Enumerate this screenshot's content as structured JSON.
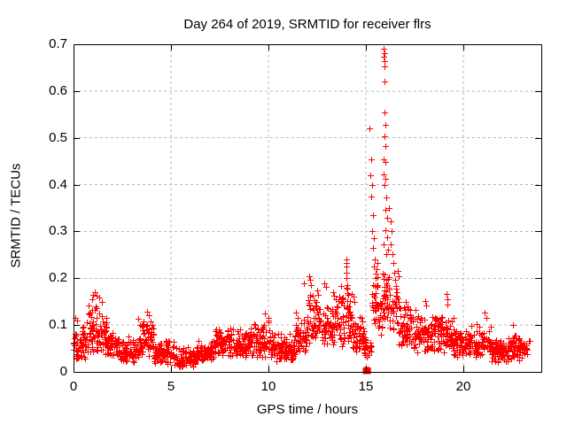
{
  "chart_data": {
    "type": "scatter",
    "title": "Day 264 of 2019, SRMTID for receiver flrs",
    "xlabel": "GPS time / hours",
    "ylabel": "SRMTID / TECUs",
    "xlim": [
      0,
      24
    ],
    "ylim": [
      0,
      0.7
    ],
    "x_ticks": [
      "0",
      "5",
      "10",
      "15",
      "20"
    ],
    "x_tick_values": [
      0,
      5,
      10,
      15,
      20
    ],
    "y_ticks": [
      "0",
      "0.1",
      "0.2",
      "0.3",
      "0.4",
      "0.5",
      "0.6",
      "0.7"
    ],
    "y_tick_values": [
      0,
      0.1,
      0.2,
      0.3,
      0.4,
      0.5,
      0.6,
      0.7
    ],
    "grid": "dashed",
    "legend": "none",
    "marker": "plus",
    "marker_color": "#ff0000",
    "grid_color": "#b8b8b8",
    "frame_color": "#000000",
    "seed": 264,
    "band_segments": [
      [
        0.0,
        0.7,
        0.025,
        0.105,
        56
      ],
      [
        0.7,
        1.7,
        0.035,
        0.16,
        85
      ],
      [
        1.7,
        2.2,
        0.03,
        0.09,
        40
      ],
      [
        2.2,
        3.3,
        0.02,
        0.08,
        88
      ],
      [
        3.3,
        4.1,
        0.03,
        0.12,
        64
      ],
      [
        4.1,
        5.2,
        0.015,
        0.075,
        88
      ],
      [
        5.2,
        6.4,
        0.01,
        0.055,
        96
      ],
      [
        6.4,
        7.2,
        0.02,
        0.07,
        64
      ],
      [
        7.2,
        9.6,
        0.03,
        0.105,
        190
      ],
      [
        9.6,
        10.1,
        0.03,
        0.125,
        40
      ],
      [
        10.1,
        11.4,
        0.02,
        0.085,
        104
      ],
      [
        11.4,
        12.0,
        0.04,
        0.13,
        48
      ],
      [
        12.0,
        12.6,
        0.05,
        0.19,
        50
      ],
      [
        12.6,
        13.6,
        0.05,
        0.16,
        80
      ],
      [
        13.6,
        14.3,
        0.05,
        0.21,
        56
      ],
      [
        14.3,
        14.9,
        0.04,
        0.13,
        48
      ],
      [
        14.9,
        15.3,
        0.03,
        0.1,
        24
      ],
      [
        15.3,
        15.6,
        0.1,
        0.27,
        26
      ],
      [
        15.6,
        15.85,
        0.08,
        0.2,
        18
      ],
      [
        15.85,
        16.2,
        0.1,
        0.24,
        34
      ],
      [
        16.2,
        16.6,
        0.08,
        0.22,
        30
      ],
      [
        16.6,
        17.4,
        0.05,
        0.17,
        64
      ],
      [
        17.4,
        18.4,
        0.04,
        0.135,
        80
      ],
      [
        18.4,
        19.0,
        0.04,
        0.14,
        48
      ],
      [
        19.0,
        19.5,
        0.04,
        0.12,
        40
      ],
      [
        19.5,
        20.2,
        0.03,
        0.1,
        56
      ],
      [
        20.2,
        21.4,
        0.03,
        0.105,
        96
      ],
      [
        21.4,
        22.3,
        0.02,
        0.075,
        72
      ],
      [
        22.3,
        23.0,
        0.025,
        0.085,
        56
      ],
      [
        23.0,
        23.35,
        0.03,
        0.07,
        20
      ]
    ],
    "feature_points": [
      [
        0.08,
        0.115
      ],
      [
        0.2,
        0.11
      ],
      [
        0.95,
        0.155
      ],
      [
        1.0,
        0.165
      ],
      [
        1.1,
        0.17
      ],
      [
        1.2,
        0.162
      ],
      [
        1.3,
        0.158
      ],
      [
        1.45,
        0.15
      ],
      [
        3.75,
        0.128
      ],
      [
        3.85,
        0.122
      ],
      [
        9.8,
        0.125
      ],
      [
        11.8,
        0.19
      ],
      [
        12.1,
        0.205
      ],
      [
        12.15,
        0.196
      ],
      [
        12.2,
        0.185
      ],
      [
        12.5,
        0.175
      ],
      [
        12.85,
        0.19
      ],
      [
        12.95,
        0.182
      ],
      [
        13.3,
        0.17
      ],
      [
        13.35,
        0.162
      ],
      [
        13.98,
        0.24
      ],
      [
        14.0,
        0.233
      ],
      [
        14.02,
        0.225
      ],
      [
        14.0,
        0.212
      ],
      [
        13.99,
        0.2
      ],
      [
        14.05,
        0.186
      ],
      [
        14.03,
        0.168
      ],
      [
        14.06,
        0.152
      ],
      [
        14.35,
        0.16
      ],
      [
        14.4,
        0.15
      ],
      [
        15.2,
        0.52
      ],
      [
        15.27,
        0.455
      ],
      [
        15.22,
        0.42
      ],
      [
        15.3,
        0.4
      ],
      [
        15.26,
        0.375
      ],
      [
        15.35,
        0.335
      ],
      [
        15.32,
        0.3
      ],
      [
        15.4,
        0.285
      ],
      [
        15.38,
        0.265
      ],
      [
        15.45,
        0.24
      ],
      [
        15.55,
        0.22
      ],
      [
        15.5,
        0.2
      ],
      [
        15.92,
        0.69
      ],
      [
        15.95,
        0.682
      ],
      [
        15.93,
        0.673
      ],
      [
        15.97,
        0.664
      ],
      [
        15.94,
        0.652
      ],
      [
        15.96,
        0.62
      ],
      [
        15.95,
        0.555
      ],
      [
        15.98,
        0.527
      ],
      [
        15.96,
        0.503
      ],
      [
        16.0,
        0.482
      ],
      [
        15.9,
        0.455
      ],
      [
        16.02,
        0.448
      ],
      [
        15.93,
        0.422
      ],
      [
        16.0,
        0.413
      ],
      [
        15.97,
        0.4
      ],
      [
        16.05,
        0.372
      ],
      [
        15.99,
        0.347
      ],
      [
        16.1,
        0.33
      ],
      [
        16.02,
        0.302
      ],
      [
        16.08,
        0.287
      ],
      [
        15.9,
        0.272
      ],
      [
        16.12,
        0.262
      ],
      [
        16.05,
        0.252
      ],
      [
        16.2,
        0.35
      ],
      [
        16.25,
        0.322
      ],
      [
        16.3,
        0.3
      ],
      [
        16.28,
        0.272
      ],
      [
        16.35,
        0.252
      ],
      [
        16.4,
        0.232
      ],
      [
        16.45,
        0.212
      ],
      [
        16.5,
        0.196
      ],
      [
        16.62,
        0.215
      ],
      [
        16.68,
        0.205
      ],
      [
        18.05,
        0.152
      ],
      [
        18.1,
        0.142
      ],
      [
        19.15,
        0.167
      ],
      [
        19.18,
        0.155
      ],
      [
        19.2,
        0.144
      ],
      [
        21.1,
        0.127
      ],
      [
        21.16,
        0.115
      ],
      [
        22.55,
        0.1
      ],
      [
        23.4,
        0.067
      ]
    ],
    "zero_points": [
      [
        15.0,
        0.002
      ],
      [
        15.05,
        0.004
      ],
      [
        15.1,
        0.002
      ]
    ]
  }
}
